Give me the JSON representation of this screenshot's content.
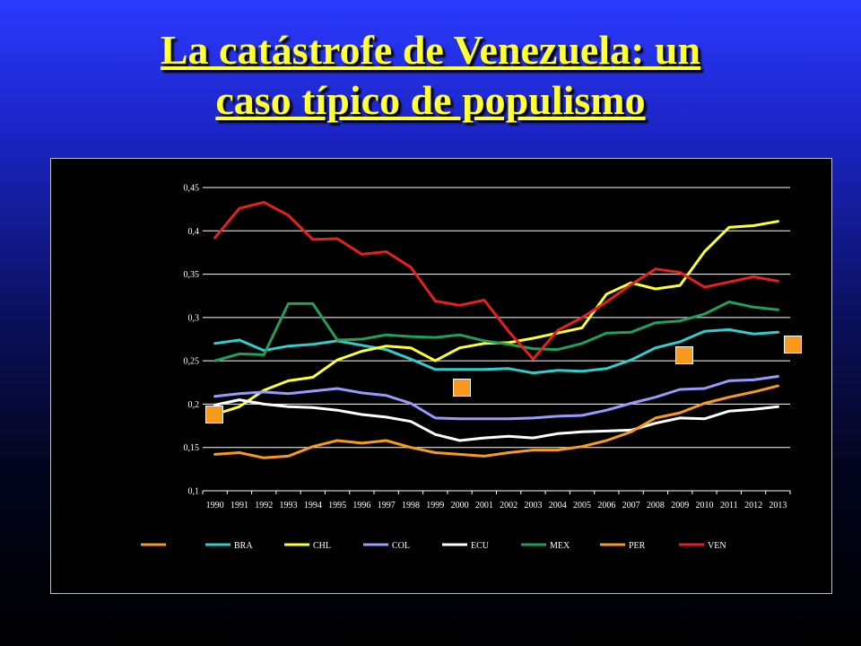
{
  "slide": {
    "title_line1": "La catástrofe de Venezuela: un",
    "title_line2": "caso típico de populismo",
    "marker_color": "#f79a1e"
  },
  "chart_data": {
    "type": "line",
    "title": "",
    "xlabel": "",
    "ylabel": "",
    "ylim": [
      0.1,
      0.45
    ],
    "yticks": [
      "0,45",
      "0,4",
      "0,35",
      "0,3",
      "0,25",
      "0,2",
      "0,15",
      "0,1"
    ],
    "grid": true,
    "legend_position": "bottom",
    "categories": [
      "1990",
      "1991",
      "1992",
      "1993",
      "1994",
      "1995",
      "1996",
      "1997",
      "1998",
      "1999",
      "2000",
      "2001",
      "2002",
      "2003",
      "2004",
      "2005",
      "2006",
      "2007",
      "2008",
      "2009",
      "2010",
      "2011",
      "2012",
      "2013"
    ],
    "legend_extra": {
      "name": "",
      "color": "#f79a1e"
    },
    "series": [
      {
        "name": "BRA",
        "color": "#33cccc",
        "values": [
          0.27,
          0.274,
          0.262,
          0.267,
          0.269,
          0.273,
          0.268,
          0.263,
          0.252,
          0.24,
          0.24,
          0.24,
          0.241,
          0.236,
          0.239,
          0.238,
          0.241,
          0.251,
          0.265,
          0.272,
          0.284,
          0.286,
          0.281,
          0.283
        ]
      },
      {
        "name": "CHL",
        "color": "#ffff33",
        "values": [
          0.188,
          0.197,
          0.216,
          0.227,
          0.231,
          0.251,
          0.261,
          0.267,
          0.265,
          0.25,
          0.265,
          0.27,
          0.271,
          0.276,
          0.282,
          0.288,
          0.327,
          0.34,
          0.333,
          0.337,
          0.376,
          0.404,
          0.406,
          0.411
        ]
      },
      {
        "name": "COL",
        "color": "#9999ff",
        "values": [
          0.209,
          0.212,
          0.214,
          0.212,
          0.215,
          0.218,
          0.213,
          0.21,
          0.201,
          0.184,
          0.183,
          0.183,
          0.183,
          0.184,
          0.186,
          0.187,
          0.193,
          0.201,
          0.208,
          0.217,
          0.218,
          0.227,
          0.228,
          0.232
        ]
      },
      {
        "name": "ECU",
        "color": "#ffffff",
        "values": [
          0.199,
          0.205,
          0.2,
          0.197,
          0.196,
          0.193,
          0.188,
          0.185,
          0.18,
          0.165,
          0.158,
          0.161,
          0.163,
          0.161,
          0.166,
          0.168,
          0.169,
          0.17,
          0.178,
          0.184,
          0.183,
          0.192,
          0.194,
          0.197
        ]
      },
      {
        "name": "MEX",
        "color": "#21a05a",
        "values": [
          0.25,
          0.258,
          0.257,
          0.316,
          0.316,
          0.274,
          0.275,
          0.28,
          0.278,
          0.277,
          0.28,
          0.273,
          0.269,
          0.264,
          0.263,
          0.27,
          0.282,
          0.283,
          0.294,
          0.296,
          0.304,
          0.318,
          0.312,
          0.309
        ]
      },
      {
        "name": "PER",
        "color": "#f79a1e",
        "values": [
          0.142,
          0.144,
          0.138,
          0.14,
          0.151,
          0.158,
          0.155,
          0.158,
          0.15,
          0.144,
          0.142,
          0.14,
          0.144,
          0.147,
          0.147,
          0.151,
          0.158,
          0.168,
          0.184,
          0.19,
          0.201,
          0.208,
          0.214,
          0.221
        ]
      },
      {
        "name": "VEN",
        "color": "#e5201e",
        "values": [
          0.392,
          0.426,
          0.433,
          0.418,
          0.39,
          0.391,
          0.373,
          0.376,
          0.358,
          0.319,
          0.314,
          0.32,
          0.284,
          0.252,
          0.285,
          0.3,
          0.318,
          0.338,
          0.356,
          0.352,
          0.335,
          0.341,
          0.347,
          0.342
        ]
      }
    ]
  }
}
